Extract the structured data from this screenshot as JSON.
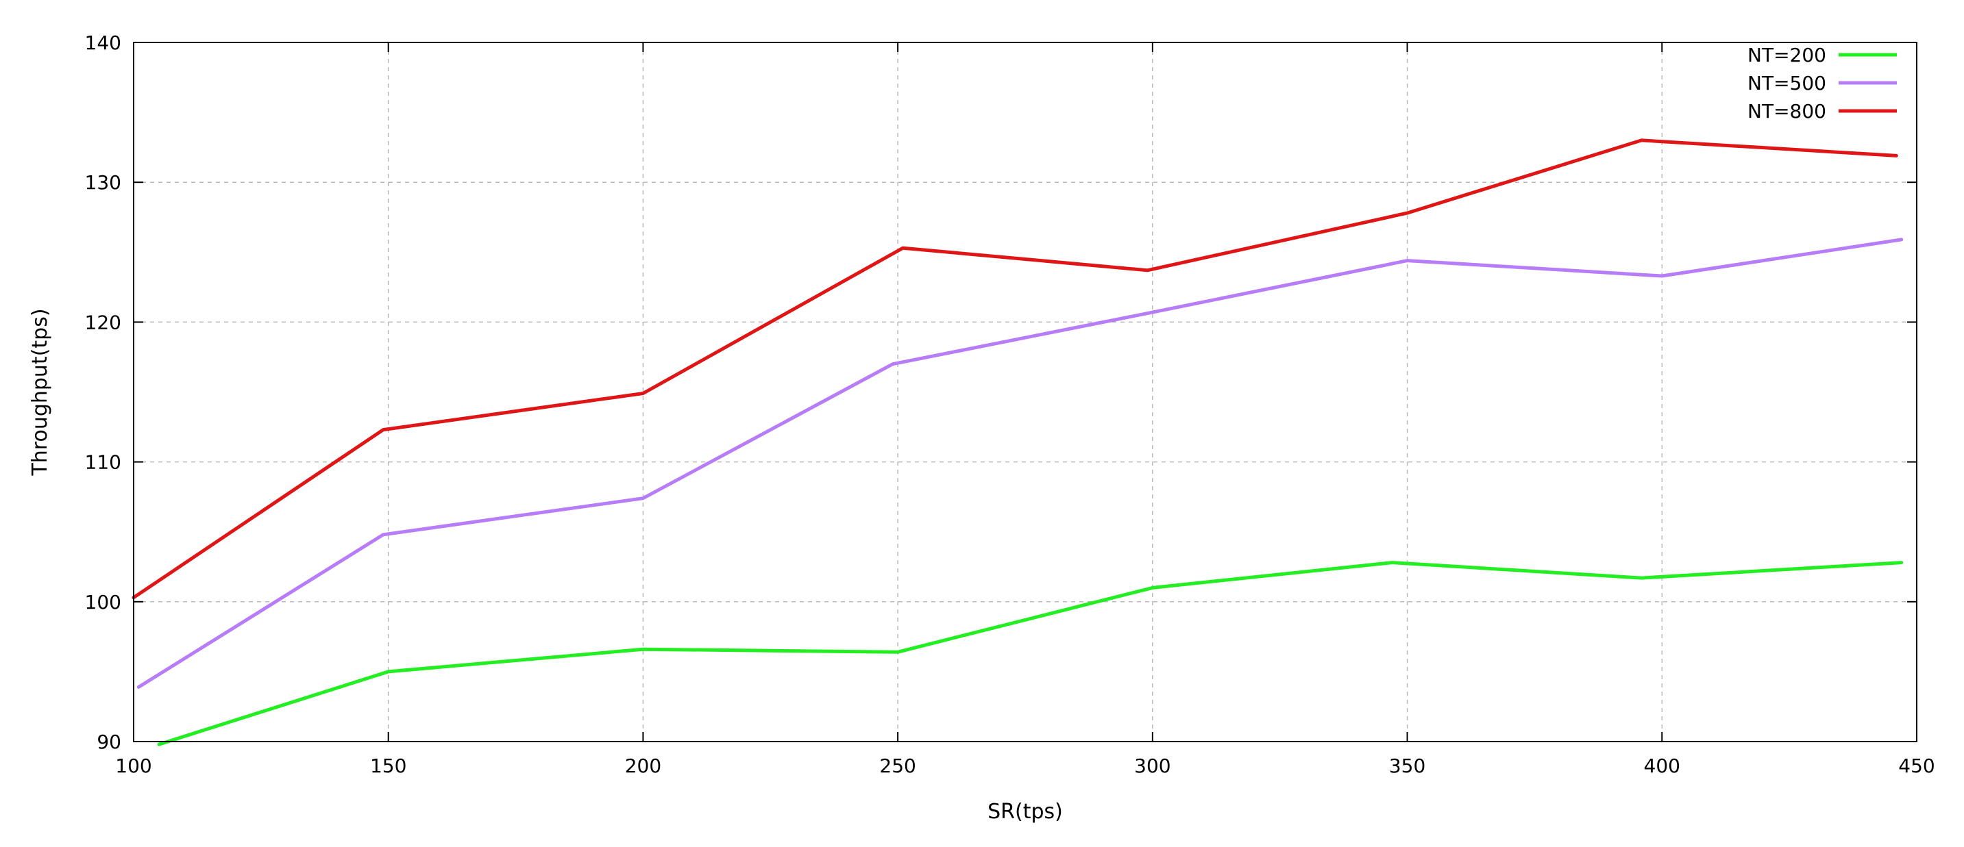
{
  "chart_data": {
    "type": "line",
    "xlabel": "SR(tps)",
    "ylabel": "Throughput(tps)",
    "xlim": [
      100,
      450
    ],
    "ylim": [
      90,
      140
    ],
    "xticks": [
      100,
      150,
      200,
      250,
      300,
      350,
      400,
      450
    ],
    "yticks": [
      90,
      100,
      110,
      120,
      130,
      140
    ],
    "grid": true,
    "legend_position": "top-right",
    "series": [
      {
        "name": "NT=200",
        "color": "#22ee22",
        "x": [
          105,
          150,
          200,
          250,
          300,
          347,
          396,
          447
        ],
        "y": [
          89.8,
          95.0,
          96.6,
          96.4,
          101.0,
          102.8,
          101.7,
          102.8
        ]
      },
      {
        "name": "NT=500",
        "color": "#b77cf7",
        "x": [
          101,
          149,
          200,
          249,
          300,
          350,
          400,
          447
        ],
        "y": [
          93.9,
          104.8,
          107.4,
          117.0,
          120.7,
          124.4,
          123.3,
          125.9
        ]
      },
      {
        "name": "NT=800",
        "color": "#e01515",
        "x": [
          100,
          149,
          200,
          251,
          299,
          350,
          396,
          446
        ],
        "y": [
          100.3,
          112.3,
          114.9,
          125.3,
          123.7,
          127.8,
          133.0,
          131.9
        ]
      }
    ]
  }
}
